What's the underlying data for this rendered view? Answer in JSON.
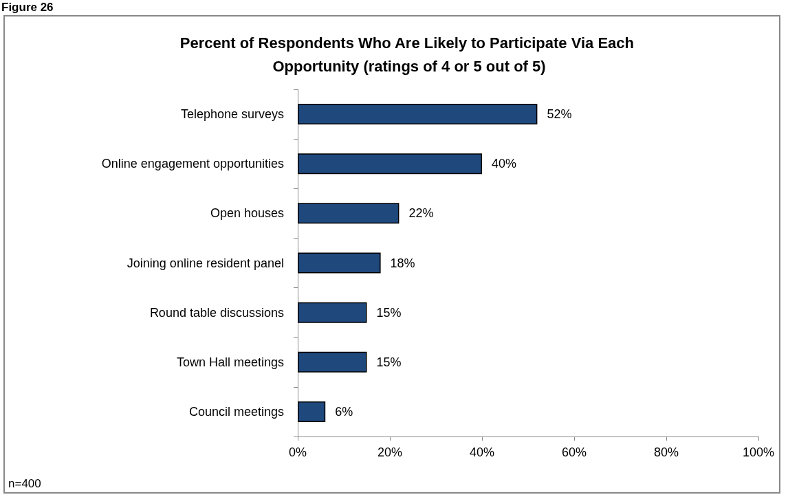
{
  "chart_data": {
    "type": "bar",
    "orientation": "horizontal",
    "title": "Percent of Respondents Who Are Likely to Participate Via Each Opportunity (ratings of 4 or 5 out of 5)",
    "categories": [
      "Telephone surveys",
      "Online engagement opportunities",
      "Open houses",
      "Joining online resident panel",
      "Round table discussions",
      "Town Hall meetings",
      "Council meetings"
    ],
    "values": [
      52,
      40,
      22,
      18,
      15,
      15,
      6
    ],
    "value_labels": [
      "52%",
      "40%",
      "22%",
      "18%",
      "15%",
      "15%",
      "6%"
    ],
    "color": "#1f497d",
    "xlim": [
      0,
      100
    ],
    "xticks": [
      {
        "value": 0,
        "label": "0%"
      },
      {
        "value": 20,
        "label": "20%"
      },
      {
        "value": 40,
        "label": "40%"
      },
      {
        "value": 60,
        "label": "60%"
      },
      {
        "value": 80,
        "label": "80%"
      },
      {
        "value": 100,
        "label": "100%"
      }
    ],
    "grid": false,
    "annotations": [
      "Figure 26",
      "n=400"
    ]
  }
}
